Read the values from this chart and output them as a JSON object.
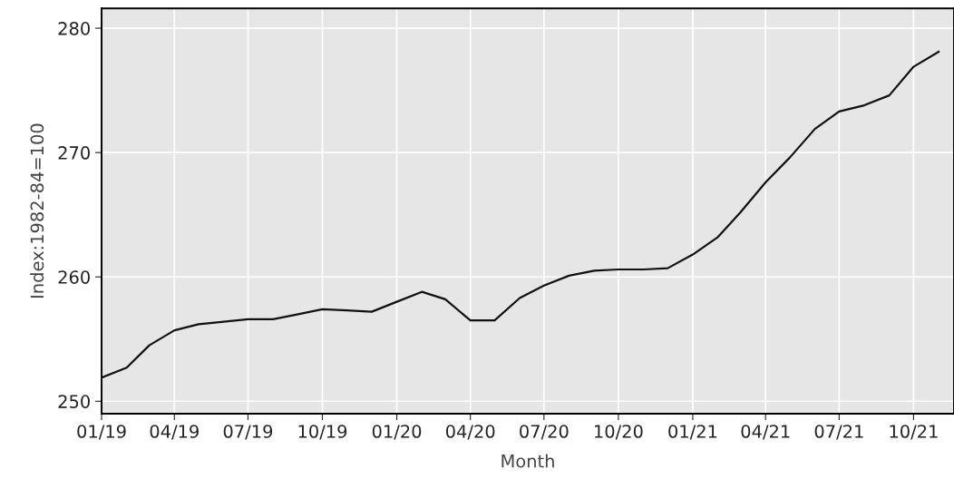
{
  "chart_data": {
    "type": "line",
    "xlabel": "Month",
    "ylabel": "Index:1982-84=100",
    "x": [
      "2019-01",
      "2019-02",
      "2019-03",
      "2019-04",
      "2019-05",
      "2019-06",
      "2019-07",
      "2019-08",
      "2019-09",
      "2019-10",
      "2019-11",
      "2019-12",
      "2020-01",
      "2020-02",
      "2020-03",
      "2020-04",
      "2020-05",
      "2020-06",
      "2020-07",
      "2020-08",
      "2020-09",
      "2020-10",
      "2020-11",
      "2020-12",
      "2021-01",
      "2021-02",
      "2021-03",
      "2021-04",
      "2021-05",
      "2021-06",
      "2021-07",
      "2021-08",
      "2021-09",
      "2021-10",
      "2021-11"
    ],
    "series": [
      {
        "color": "#111111",
        "values": [
          251.9,
          252.7,
          254.5,
          255.7,
          256.2,
          256.4,
          256.6,
          256.6,
          257.0,
          257.4,
          257.3,
          257.2,
          258.0,
          258.8,
          258.2,
          256.5,
          256.5,
          258.3,
          259.3,
          260.1,
          260.5,
          260.6,
          260.6,
          260.7,
          261.8,
          263.2,
          265.2,
          267.6,
          269.6,
          271.9,
          273.3,
          273.8,
          274.6,
          276.9,
          278.1
        ]
      }
    ],
    "xlim": [
      "2019-01-01",
      "2021-11-20"
    ],
    "xticks": [
      {
        "value": "2019-01-01",
        "label": "01/19"
      },
      {
        "value": "2019-04-01",
        "label": "04/19"
      },
      {
        "value": "2019-07-01",
        "label": "07/19"
      },
      {
        "value": "2019-10-01",
        "label": "10/19"
      },
      {
        "value": "2020-01-01",
        "label": "01/20"
      },
      {
        "value": "2020-04-01",
        "label": "04/20"
      },
      {
        "value": "2020-07-01",
        "label": "07/20"
      },
      {
        "value": "2020-10-01",
        "label": "10/20"
      },
      {
        "value": "2021-01-01",
        "label": "01/21"
      },
      {
        "value": "2021-04-01",
        "label": "04/21"
      },
      {
        "value": "2021-07-01",
        "label": "07/21"
      },
      {
        "value": "2021-10-01",
        "label": "10/21"
      }
    ],
    "ylim": [
      249.0,
      281.6
    ],
    "yticks": [
      250,
      260,
      270,
      280
    ],
    "grid": true,
    "marker": "none",
    "line_style": "solid"
  }
}
